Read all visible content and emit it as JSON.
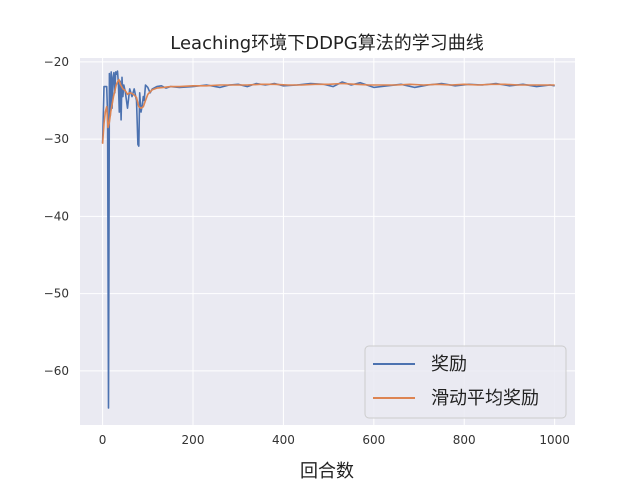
{
  "chart_data": {
    "type": "line",
    "title": "Leaching环境下DDPG算法的学习曲线",
    "xlabel": "回合数",
    "ylabel": "",
    "xlim": [
      -50,
      1045
    ],
    "ylim": [
      -67,
      -19.5
    ],
    "xticks": [
      0,
      200,
      400,
      600,
      800,
      1000
    ],
    "yticks": [
      -20,
      -30,
      -40,
      -50,
      -60
    ],
    "grid": true,
    "legend_position": "lower-right",
    "series": [
      {
        "name": "奖励",
        "color": "#4c72b0",
        "x": [
          0,
          3,
          6,
          9,
          11,
          13,
          15,
          17,
          19,
          21,
          23,
          25,
          27,
          29,
          31,
          33,
          35,
          37,
          39,
          41,
          43,
          45,
          47,
          50,
          55,
          60,
          65,
          70,
          75,
          78,
          80,
          82,
          85,
          88,
          90,
          92,
          95,
          100,
          105,
          110,
          120,
          130,
          140,
          150,
          170,
          200,
          230,
          260,
          280,
          300,
          320,
          340,
          360,
          380,
          400,
          430,
          460,
          490,
          510,
          530,
          550,
          570,
          600,
          630,
          660,
          690,
          720,
          750,
          780,
          810,
          840,
          870,
          900,
          930,
          960,
          990,
          1000
        ],
        "values": [
          -30.5,
          -23.2,
          -23.2,
          -23.2,
          -27.0,
          -64.8,
          -21.5,
          -27.0,
          -21.3,
          -26.0,
          -22.0,
          -21.4,
          -24.0,
          -21.3,
          -21.6,
          -21.2,
          -22.8,
          -26.5,
          -22.5,
          -27.5,
          -22.0,
          -24.5,
          -23.0,
          -23.8,
          -26.0,
          -23.5,
          -24.5,
          -23.5,
          -25.0,
          -30.7,
          -30.9,
          -24.0,
          -26.5,
          -25.5,
          -24.5,
          -25.0,
          -23.0,
          -23.3,
          -24.0,
          -23.5,
          -23.2,
          -23.1,
          -23.4,
          -23.2,
          -23.3,
          -23.2,
          -23.0,
          -23.3,
          -23.0,
          -22.9,
          -23.2,
          -22.8,
          -23.0,
          -22.8,
          -23.1,
          -23.0,
          -22.8,
          -22.9,
          -23.2,
          -22.6,
          -23.0,
          -22.7,
          -23.3,
          -23.1,
          -22.9,
          -23.3,
          -23.0,
          -22.8,
          -23.1,
          -22.9,
          -23.0,
          -22.8,
          -23.1,
          -22.9,
          -23.2,
          -23.0,
          -23.1
        ]
      },
      {
        "name": "滑动平均奖励",
        "color": "#dd8452",
        "x": [
          0,
          3,
          6,
          9,
          12,
          15,
          18,
          21,
          24,
          27,
          30,
          33,
          36,
          40,
          45,
          50,
          55,
          60,
          65,
          70,
          75,
          80,
          85,
          90,
          95,
          100,
          110,
          120,
          135,
          150,
          170,
          200,
          230,
          260,
          290,
          320,
          350,
          380,
          410,
          440,
          470,
          500,
          530,
          560,
          590,
          620,
          650,
          680,
          710,
          740,
          770,
          800,
          830,
          860,
          890,
          920,
          950,
          980,
          1000
        ],
        "values": [
          -30.6,
          -28.0,
          -26.5,
          -25.8,
          -28.5,
          -27.8,
          -26.5,
          -25.5,
          -24.5,
          -23.8,
          -23.0,
          -22.6,
          -22.3,
          -23.0,
          -23.5,
          -23.7,
          -24.2,
          -24.0,
          -24.1,
          -24.3,
          -24.6,
          -25.8,
          -26.0,
          -25.8,
          -25.0,
          -24.2,
          -23.6,
          -23.4,
          -23.3,
          -23.2,
          -23.2,
          -23.1,
          -23.1,
          -23.0,
          -23.0,
          -23.0,
          -22.9,
          -22.9,
          -23.0,
          -23.0,
          -22.9,
          -22.9,
          -22.8,
          -22.9,
          -23.0,
          -23.0,
          -23.0,
          -22.9,
          -23.0,
          -22.9,
          -23.0,
          -22.9,
          -23.0,
          -22.9,
          -22.9,
          -23.0,
          -23.0,
          -23.0,
          -23.0
        ]
      }
    ]
  }
}
